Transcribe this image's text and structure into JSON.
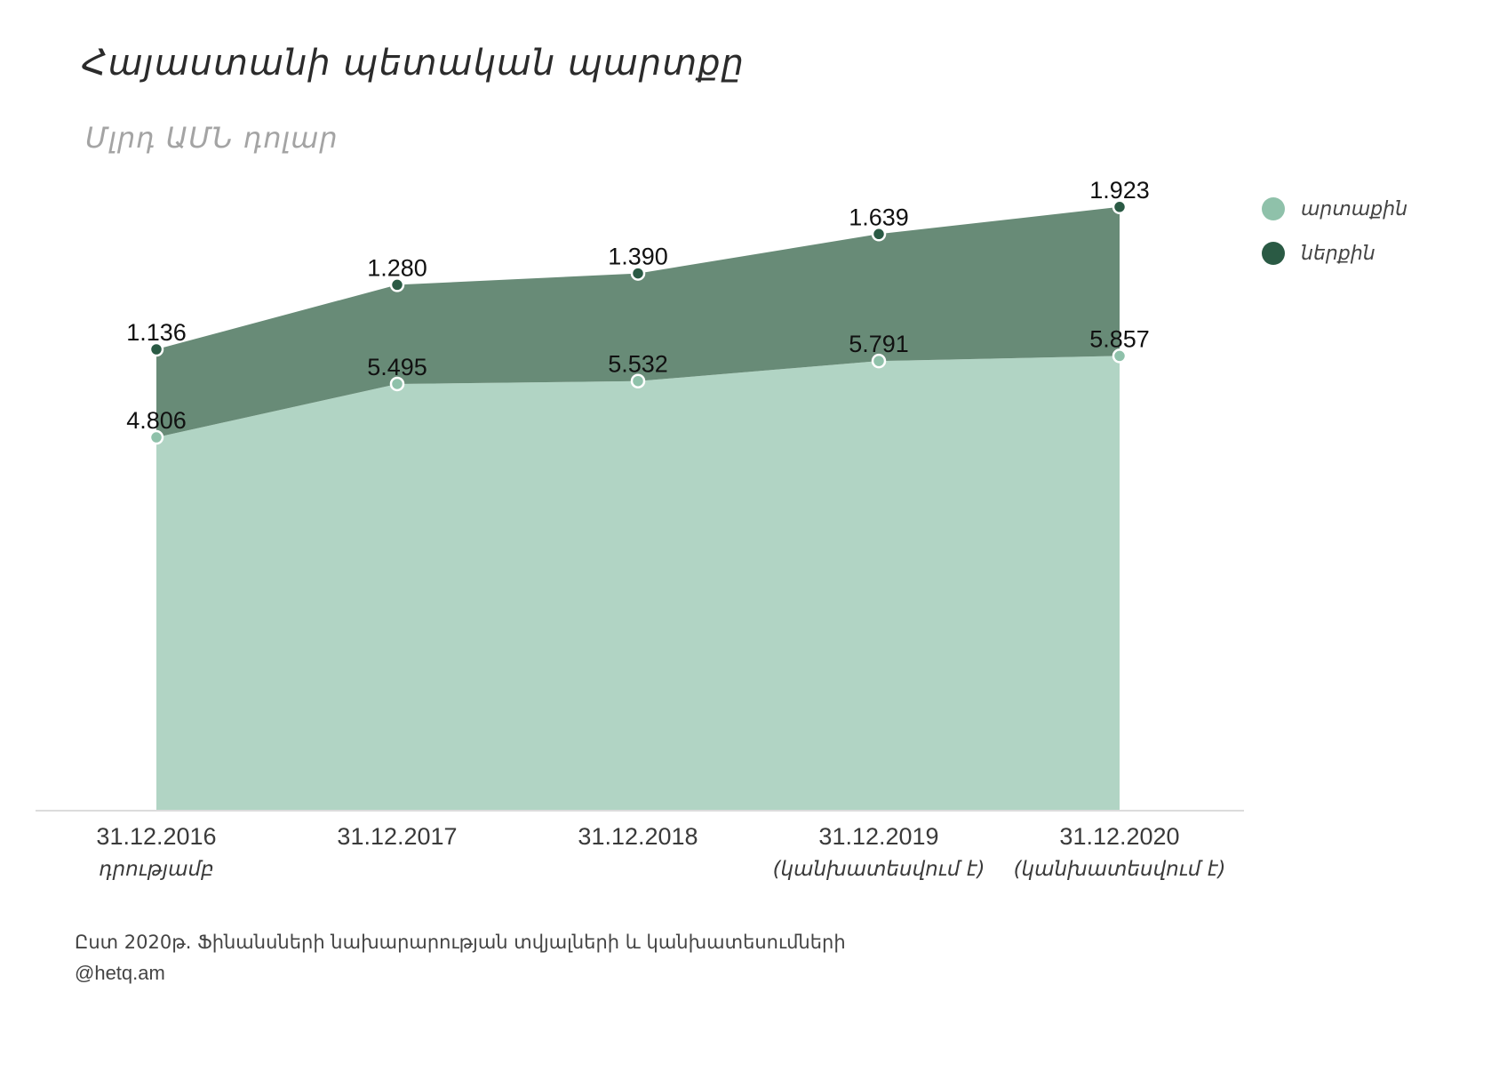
{
  "title": "Հայաստանի պետական պարտքը",
  "subtitle": "Մլրդ ԱՄՆ դոլար",
  "colors": {
    "external": "#b1d4c4",
    "internal": "#688b77",
    "internal_dot": "#2a5a44",
    "external_dot": "#8fc1aa"
  },
  "legend": [
    {
      "label": "արտաքին",
      "color": "#8fc1aa"
    },
    {
      "label": "ներքին",
      "color": "#2a5a44"
    }
  ],
  "chart_data": {
    "type": "area",
    "stacked": true,
    "categories": [
      "31.12.2016",
      "31.12.2017",
      "31.12.2018",
      "31.12.2019",
      "31.12.2020"
    ],
    "category_notes": [
      "դրությամբ",
      "",
      "",
      "(կանխատեսվում է)",
      "(կանխատեսվում է)"
    ],
    "series": [
      {
        "name": "արտաքին",
        "values": [
          4.806,
          5.495,
          5.532,
          5.791,
          5.857
        ],
        "labels": [
          "4.806",
          "5.495",
          "5.532",
          "5.791",
          "5.857"
        ]
      },
      {
        "name": "ներքին",
        "values": [
          1.136,
          1.28,
          1.39,
          1.639,
          1.923
        ],
        "labels": [
          "1.136",
          "1.280",
          "1.390",
          "1.639",
          "1.923"
        ]
      }
    ],
    "ylim": [
      0,
      8.5
    ],
    "grid": false,
    "legend_position": "top-right"
  },
  "source": "Ըստ 2020թ. Ֆինանսների նախարարության տվյալների և կանխատեսումների",
  "credit": "@hetq.am"
}
